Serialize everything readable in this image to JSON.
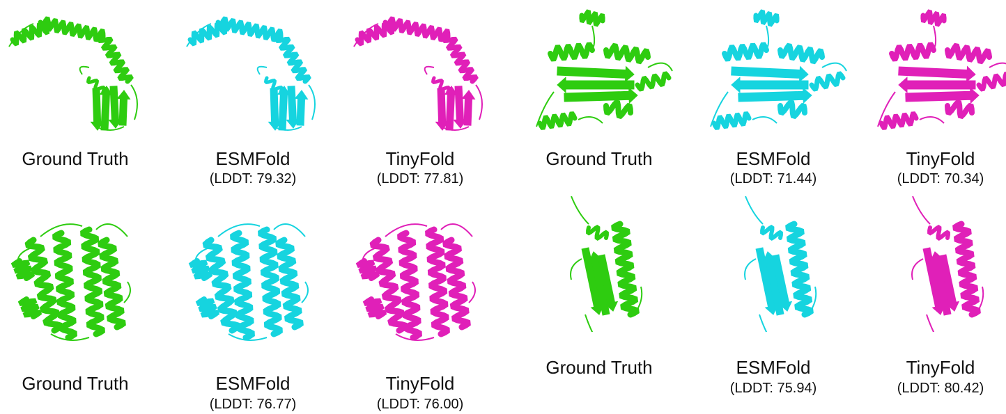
{
  "colors": {
    "ground_truth": "#2ecc10",
    "esmfold": "#16d4df",
    "tinyfold": "#e020b8",
    "text": "#111111"
  },
  "panels": [
    {
      "model": "Ground Truth",
      "score": "",
      "fold": "elongated-helix-with-beta-sheet",
      "color": "#2ecc10"
    },
    {
      "model": "ESMFold",
      "score": "(LDDT: 79.32)",
      "fold": "elongated-helix-with-beta-sheet",
      "color": "#16d4df"
    },
    {
      "model": "TinyFold",
      "score": "(LDDT: 77.81)",
      "fold": "elongated-helix-with-beta-sheet",
      "color": "#e020b8"
    },
    {
      "model": "Ground Truth",
      "score": "",
      "fold": "alpha-beta-sandwich",
      "color": "#2ecc10"
    },
    {
      "model": "ESMFold",
      "score": "(LDDT: 71.44)",
      "fold": "alpha-beta-sandwich",
      "color": "#16d4df"
    },
    {
      "model": "TinyFold",
      "score": "(LDDT: 70.34)",
      "fold": "alpha-beta-sandwich",
      "color": "#e020b8"
    },
    {
      "model": "Ground Truth",
      "score": "",
      "fold": "helical-bundle",
      "color": "#2ecc10"
    },
    {
      "model": "ESMFold",
      "score": "(LDDT: 76.77)",
      "fold": "helical-bundle",
      "color": "#16d4df"
    },
    {
      "model": "TinyFold",
      "score": "(LDDT: 76.00)",
      "fold": "helical-bundle",
      "color": "#e020b8"
    },
    {
      "model": "Ground Truth",
      "score": "",
      "fold": "beta-sheet-with-helix",
      "color": "#2ecc10"
    },
    {
      "model": "ESMFold",
      "score": "(LDDT: 75.94)",
      "fold": "beta-sheet-with-helix",
      "color": "#16d4df"
    },
    {
      "model": "TinyFold",
      "score": "(LDDT: 80.42)",
      "fold": "beta-sheet-with-helix",
      "color": "#e020b8"
    }
  ]
}
